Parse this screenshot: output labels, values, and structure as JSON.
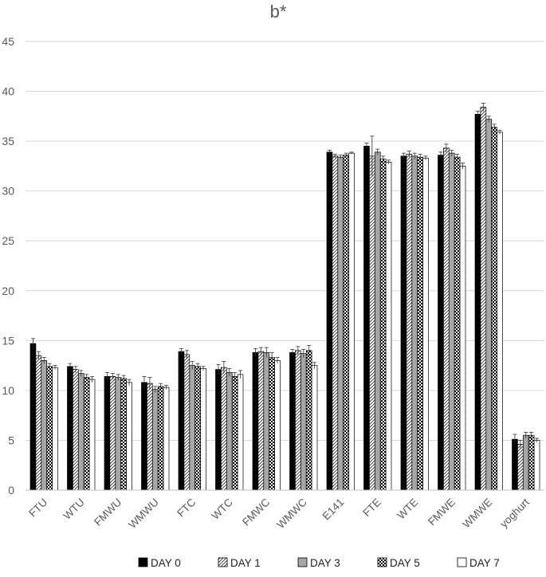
{
  "chart_data": {
    "type": "bar",
    "title": "b*",
    "xlabel": "",
    "ylabel": "",
    "ylim": [
      0,
      45
    ],
    "yticks": [
      0,
      5,
      10,
      15,
      20,
      25,
      30,
      35,
      40,
      45
    ],
    "grid": true,
    "legend_position": "bottom",
    "categories": [
      "FTU",
      "WTU",
      "FMWU",
      "WMWU",
      "FTC",
      "WTC",
      "FMWC",
      "WMWC",
      "E141",
      "FTE",
      "WTE",
      "FMWE",
      "WMWE",
      "yoghurt"
    ],
    "series": [
      {
        "name": "DAY 0",
        "pattern": "solid-black",
        "values": [
          14.7,
          12.4,
          11.4,
          10.8,
          13.9,
          12.1,
          13.8,
          13.8,
          33.9,
          34.5,
          33.5,
          33.6,
          37.7,
          5.1
        ],
        "errors": [
          0.5,
          0.3,
          0.4,
          0.6,
          0.3,
          0.5,
          0.4,
          0.3,
          0.2,
          0.3,
          0.3,
          0.3,
          0.3,
          0.5
        ]
      },
      {
        "name": "DAY 1",
        "pattern": "diagonal-hatch",
        "values": [
          13.5,
          12.1,
          11.4,
          10.7,
          13.6,
          12.3,
          13.9,
          14.0,
          33.5,
          33.5,
          33.7,
          34.3,
          38.4,
          4.6
        ],
        "errors": [
          0.4,
          0.3,
          0.3,
          0.6,
          0.4,
          0.6,
          0.4,
          0.4,
          0.2,
          2.0,
          0.3,
          0.4,
          0.4,
          0.4
        ]
      },
      {
        "name": "DAY 3",
        "pattern": "solid-gray",
        "values": [
          13.0,
          11.7,
          11.3,
          10.1,
          12.5,
          11.8,
          13.8,
          13.7,
          33.4,
          33.9,
          33.5,
          33.8,
          37.2,
          5.5
        ],
        "errors": [
          0.3,
          0.3,
          0.3,
          0.3,
          0.4,
          0.4,
          0.5,
          0.4,
          0.2,
          0.3,
          0.3,
          0.3,
          0.3,
          0.3
        ]
      },
      {
        "name": "DAY 5",
        "pattern": "checkerboard",
        "values": [
          12.4,
          11.3,
          11.2,
          10.4,
          12.4,
          11.4,
          13.3,
          14.0,
          33.6,
          33.2,
          33.4,
          33.4,
          36.4,
          5.5
        ],
        "errors": [
          0.3,
          0.3,
          0.3,
          0.3,
          0.3,
          0.4,
          0.5,
          0.5,
          0.2,
          0.3,
          0.3,
          0.3,
          0.3,
          0.3
        ]
      },
      {
        "name": "DAY 7",
        "pattern": "solid-white",
        "values": [
          12.3,
          11.1,
          10.8,
          10.3,
          12.2,
          11.6,
          13.0,
          12.5,
          33.8,
          32.9,
          33.3,
          32.5,
          35.9,
          5.0
        ],
        "errors": [
          0.2,
          0.3,
          0.3,
          0.2,
          0.2,
          0.4,
          0.3,
          0.3,
          0.1,
          0.2,
          0.2,
          0.3,
          0.2,
          0.2
        ]
      }
    ]
  }
}
